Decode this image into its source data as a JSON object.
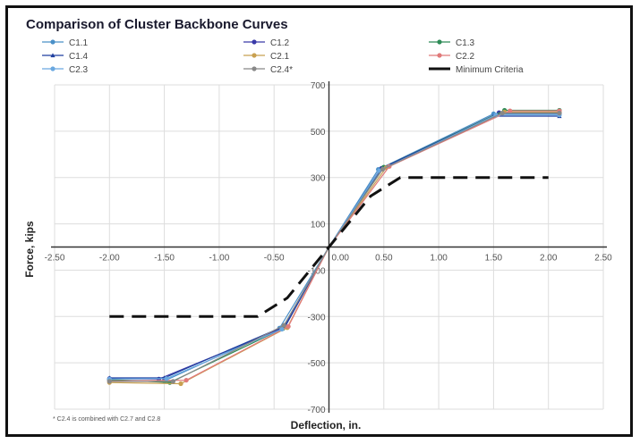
{
  "chart_data": {
    "type": "line",
    "title": "Comparison of Cluster Backbone Curves",
    "xlabel": "Deflection, in.",
    "ylabel": "Force, kips",
    "xlim": [
      -2.5,
      2.5
    ],
    "ylim": [
      -700,
      700
    ],
    "x_ticks": [
      "-2.50",
      "-2.00",
      "-1.50",
      "-1.00",
      "-0.50",
      "0.00",
      "0.50",
      "1.00",
      "1.50",
      "2.00",
      "2.50"
    ],
    "y_ticks": [
      "700",
      "500",
      "300",
      "100",
      "-100",
      "-300",
      "-500",
      "-700"
    ],
    "grid": true,
    "legend_position": "top",
    "footnote": "* C2.4 is combined with C2.7 and C2.8",
    "series": [
      {
        "name": "C1.1",
        "color": "#4a90c8",
        "marker": "circle",
        "x": [
          -2.0,
          -1.5,
          -0.45,
          0,
          0.45,
          1.5,
          2.1
        ],
        "y": [
          -575,
          -578,
          -350,
          0,
          335,
          575,
          575
        ]
      },
      {
        "name": "C1.2",
        "color": "#3a3aa8",
        "marker": "circle",
        "x": [
          -2.0,
          -1.55,
          -0.4,
          0,
          0.48,
          1.55,
          2.1
        ],
        "y": [
          -568,
          -570,
          -345,
          0,
          340,
          580,
          580
        ]
      },
      {
        "name": "C1.3",
        "color": "#2e8b57",
        "marker": "circle",
        "x": [
          -2.0,
          -1.45,
          -0.42,
          0,
          0.5,
          1.6,
          2.1
        ],
        "y": [
          -572,
          -585,
          -352,
          0,
          345,
          590,
          590
        ]
      },
      {
        "name": "C1.4",
        "color": "#1f3f9f",
        "marker": "triangle",
        "x": [
          -2.0,
          -1.5,
          -0.4,
          0,
          0.47,
          1.5,
          2.1
        ],
        "y": [
          -565,
          -565,
          -340,
          0,
          338,
          565,
          565
        ]
      },
      {
        "name": "C2.1",
        "color": "#c8a050",
        "marker": "circle",
        "x": [
          -2.0,
          -1.35,
          -0.38,
          0,
          0.52,
          1.6,
          2.1
        ],
        "y": [
          -585,
          -590,
          -348,
          0,
          342,
          583,
          583
        ]
      },
      {
        "name": "C2.2",
        "color": "#e07a7a",
        "marker": "circle",
        "x": [
          -2.0,
          -1.3,
          -0.37,
          0,
          0.55,
          1.65,
          2.1
        ],
        "y": [
          -578,
          -575,
          -343,
          0,
          348,
          588,
          588
        ]
      },
      {
        "name": "C2.3",
        "color": "#6aa8e0",
        "marker": "circle",
        "x": [
          -2.0,
          -1.48,
          -0.43,
          0,
          0.46,
          1.52,
          2.1
        ],
        "y": [
          -570,
          -568,
          -355,
          0,
          330,
          570,
          570
        ]
      },
      {
        "name": "C2.4*",
        "color": "#888888",
        "marker": "circle",
        "x": [
          -2.0,
          -1.42,
          -0.41,
          0,
          0.49,
          1.58,
          2.1
        ],
        "y": [
          -580,
          -580,
          -338,
          0,
          336,
          578,
          578
        ]
      }
    ],
    "reference": {
      "name": "Minimum Criteria",
      "color": "#111111",
      "style": "dashed",
      "x": [
        -2.0,
        -0.65,
        -0.38,
        0,
        0.38,
        0.65,
        2.0
      ],
      "y": [
        -300,
        -300,
        -220,
        0,
        220,
        300,
        300
      ]
    }
  }
}
